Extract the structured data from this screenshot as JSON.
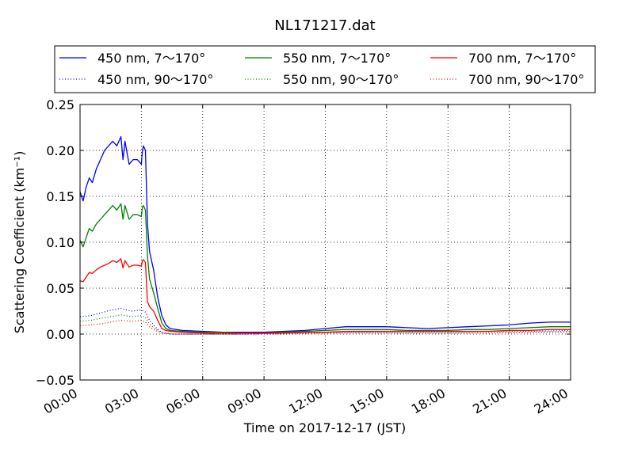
{
  "chart_data": {
    "type": "line",
    "title": "NL171217.dat",
    "xlabel": "Time on 2017-12-17 (JST)",
    "ylabel": "Scattering Coefficient (km⁻¹)",
    "xlim": [
      0,
      24
    ],
    "ylim": [
      -0.05,
      0.25
    ],
    "x_ticks": [
      0,
      3,
      6,
      9,
      12,
      15,
      18,
      21,
      24
    ],
    "x_tick_labels": [
      "00:00",
      "03:00",
      "06:00",
      "09:00",
      "12:00",
      "15:00",
      "18:00",
      "21:00",
      "24:00"
    ],
    "y_ticks": [
      -0.05,
      0.0,
      0.05,
      0.1,
      0.15,
      0.2,
      0.25
    ],
    "y_tick_labels": [
      "−0.05",
      "0.00",
      "0.05",
      "0.10",
      "0.15",
      "0.20",
      "0.25"
    ],
    "grid": true,
    "legend_position": "top, above plot",
    "series": [
      {
        "name": "450 nm, 7～170°",
        "color": "#0000ff",
        "style": "solid",
        "x": [
          0,
          0.15,
          0.3,
          0.45,
          0.6,
          0.8,
          1.0,
          1.2,
          1.4,
          1.6,
          1.8,
          2.0,
          2.1,
          2.2,
          2.4,
          2.6,
          2.8,
          3.0,
          3.05,
          3.1,
          3.2,
          3.3,
          3.4,
          3.6,
          3.8,
          4.0,
          4.2,
          4.4,
          5,
          6,
          7,
          8,
          9,
          10,
          11,
          12,
          13,
          14,
          15,
          16,
          17,
          18,
          19,
          20,
          21,
          22,
          23,
          24
        ],
        "y": [
          0.155,
          0.145,
          0.16,
          0.17,
          0.165,
          0.18,
          0.19,
          0.2,
          0.205,
          0.21,
          0.205,
          0.215,
          0.19,
          0.21,
          0.185,
          0.19,
          0.19,
          0.185,
          0.2,
          0.205,
          0.2,
          0.12,
          0.09,
          0.07,
          0.04,
          0.02,
          0.01,
          0.006,
          0.004,
          0.003,
          0.002,
          0.002,
          0.002,
          0.003,
          0.004,
          0.006,
          0.008,
          0.008,
          0.008,
          0.007,
          0.006,
          0.007,
          0.008,
          0.009,
          0.01,
          0.012,
          0.013,
          0.013
        ]
      },
      {
        "name": "450 nm, 90～170°",
        "color": "#0000ff",
        "style": "dotted",
        "x": [
          0,
          0.5,
          1.0,
          1.5,
          2.0,
          2.5,
          3.0,
          3.2,
          3.4,
          3.6,
          3.8,
          4.0,
          4.5,
          5,
          6,
          8,
          10,
          12,
          14,
          16,
          18,
          20,
          22,
          24
        ],
        "y": [
          0.019,
          0.02,
          0.023,
          0.026,
          0.028,
          0.025,
          0.026,
          0.024,
          0.015,
          0.01,
          0.005,
          0.002,
          0.0,
          0.0,
          0.0,
          0.0,
          0.001,
          0.002,
          0.002,
          0.002,
          0.002,
          0.003,
          0.003,
          0.004
        ]
      },
      {
        "name": "550 nm, 7～170°",
        "color": "#008000",
        "style": "solid",
        "x": [
          0,
          0.15,
          0.3,
          0.45,
          0.6,
          0.8,
          1.0,
          1.2,
          1.4,
          1.6,
          1.8,
          2.0,
          2.1,
          2.2,
          2.4,
          2.6,
          2.8,
          3.0,
          3.05,
          3.1,
          3.2,
          3.3,
          3.4,
          3.6,
          3.8,
          4.0,
          4.2,
          4.4,
          5,
          6,
          7,
          8,
          9,
          10,
          11,
          12,
          13,
          14,
          15,
          16,
          17,
          18,
          19,
          20,
          21,
          22,
          23,
          24
        ],
        "y": [
          0.102,
          0.095,
          0.105,
          0.115,
          0.112,
          0.12,
          0.125,
          0.13,
          0.135,
          0.14,
          0.135,
          0.142,
          0.125,
          0.14,
          0.125,
          0.13,
          0.13,
          0.128,
          0.138,
          0.14,
          0.135,
          0.085,
          0.06,
          0.045,
          0.028,
          0.012,
          0.006,
          0.004,
          0.003,
          0.002,
          0.002,
          0.001,
          0.001,
          0.002,
          0.003,
          0.004,
          0.005,
          0.005,
          0.005,
          0.004,
          0.004,
          0.004,
          0.005,
          0.005,
          0.006,
          0.007,
          0.008,
          0.008
        ]
      },
      {
        "name": "550 nm, 90～170°",
        "color": "#008000",
        "style": "dotted",
        "x": [
          0,
          0.5,
          1.0,
          1.5,
          2.0,
          2.5,
          3.0,
          3.2,
          3.4,
          3.6,
          3.8,
          4.0,
          4.5,
          5,
          6,
          8,
          10,
          12,
          14,
          16,
          18,
          20,
          22,
          24
        ],
        "y": [
          0.014,
          0.015,
          0.017,
          0.019,
          0.021,
          0.019,
          0.02,
          0.018,
          0.011,
          0.007,
          0.004,
          0.001,
          0.0,
          0.0,
          0.0,
          0.0,
          0.001,
          0.001,
          0.002,
          0.001,
          0.001,
          0.002,
          0.002,
          0.003
        ]
      },
      {
        "name": "700 nm, 7～170°",
        "color": "#ff0000",
        "style": "solid",
        "x": [
          0,
          0.15,
          0.3,
          0.45,
          0.6,
          0.8,
          1.0,
          1.2,
          1.4,
          1.6,
          1.8,
          2.0,
          2.1,
          2.2,
          2.4,
          2.6,
          2.8,
          3.0,
          3.05,
          3.1,
          3.2,
          3.3,
          3.4,
          3.6,
          3.8,
          4.0,
          4.2,
          4.4,
          5,
          6,
          7,
          8,
          9,
          10,
          11,
          12,
          13,
          14,
          15,
          16,
          17,
          18,
          19,
          20,
          21,
          22,
          23,
          24
        ],
        "y": [
          0.058,
          0.057,
          0.062,
          0.067,
          0.066,
          0.07,
          0.073,
          0.075,
          0.077,
          0.08,
          0.078,
          0.082,
          0.072,
          0.08,
          0.073,
          0.075,
          0.075,
          0.074,
          0.08,
          0.081,
          0.078,
          0.035,
          0.03,
          0.025,
          0.015,
          0.006,
          0.004,
          0.003,
          0.002,
          0.001,
          0.001,
          0.001,
          0.001,
          0.001,
          0.002,
          0.002,
          0.003,
          0.003,
          0.003,
          0.003,
          0.003,
          0.003,
          0.003,
          0.003,
          0.004,
          0.004,
          0.005,
          0.005
        ]
      },
      {
        "name": "700 nm, 90～170°",
        "color": "#ff0000",
        "style": "dotted",
        "x": [
          0,
          0.5,
          1.0,
          1.5,
          2.0,
          2.5,
          3.0,
          3.2,
          3.4,
          3.6,
          3.8,
          4.0,
          4.5,
          5,
          6,
          8,
          10,
          12,
          14,
          16,
          18,
          20,
          22,
          24
        ],
        "y": [
          0.009,
          0.01,
          0.011,
          0.013,
          0.015,
          0.014,
          0.015,
          0.013,
          0.008,
          0.005,
          0.003,
          0.001,
          0.0,
          0.0,
          0.0,
          0.0,
          0.0,
          0.001,
          0.001,
          0.001,
          0.001,
          0.001,
          0.002,
          0.002
        ]
      }
    ]
  }
}
